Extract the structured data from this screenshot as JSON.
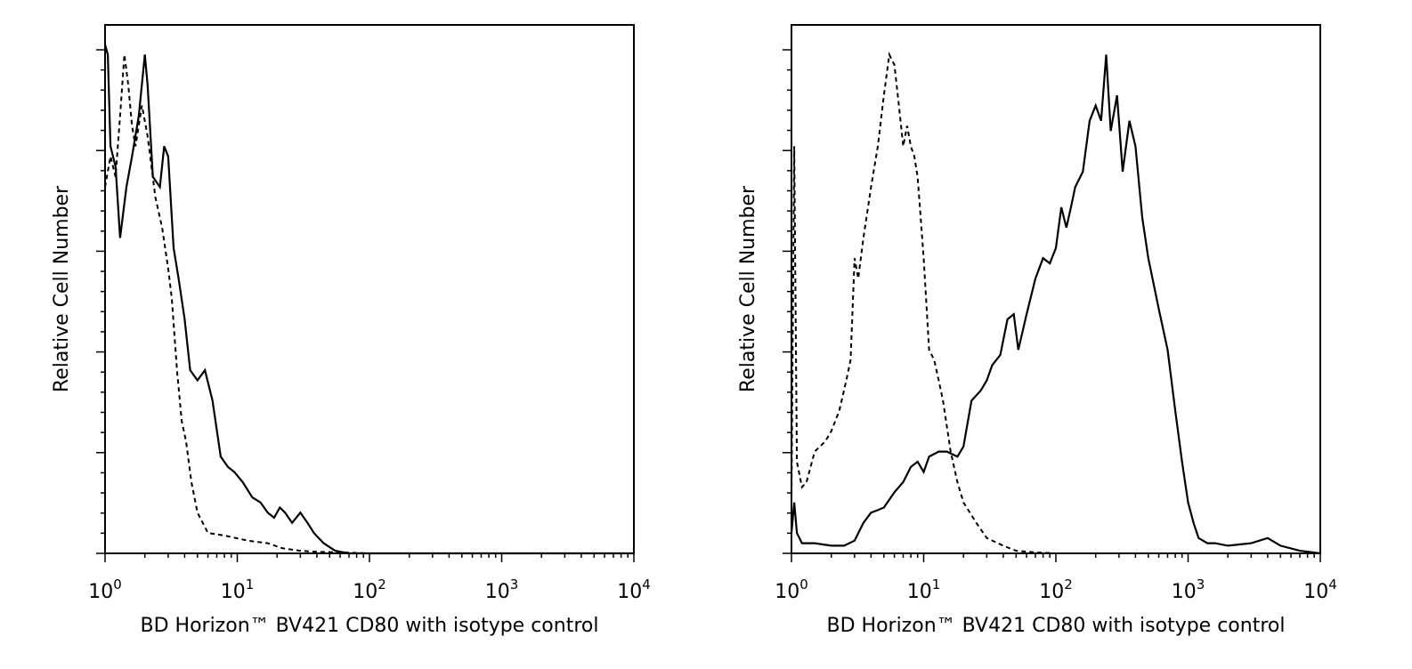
{
  "chart_data": [
    {
      "type": "line",
      "title": "",
      "xlabel": "BD Horizon™ BV421 CD80 with isotype control",
      "ylabel": "Relative Cell Number",
      "xscale": "log",
      "xlim": [
        1,
        10000
      ],
      "ylim": [
        0,
        100
      ],
      "x_ticks": [
        {
          "base": "10",
          "exp": "0"
        },
        {
          "base": "10",
          "exp": "1"
        },
        {
          "base": "10",
          "exp": "2"
        },
        {
          "base": "10",
          "exp": "3"
        },
        {
          "base": "10",
          "exp": "4"
        }
      ],
      "y_tick_count": 6,
      "grid": false,
      "series": [
        {
          "style": "solid",
          "color": "#000000",
          "x": [
            1.0,
            1.05,
            1.1,
            1.2,
            1.3,
            1.45,
            1.6,
            1.8,
            2.0,
            2.1,
            2.3,
            2.6,
            2.8,
            3.0,
            3.3,
            3.6,
            4.0,
            4.4,
            5.0,
            5.7,
            6.5,
            7.5,
            8.5,
            9.5,
            11,
            13,
            15,
            17,
            19,
            21,
            23,
            26,
            30,
            34,
            38,
            45,
            55,
            70,
            100,
            1000,
            10000
          ],
          "y": [
            100,
            98,
            80,
            76,
            62,
            72,
            78,
            86,
            98,
            92,
            74,
            72,
            80,
            78,
            60,
            54,
            46,
            36,
            34,
            36,
            30,
            19,
            17,
            16,
            14,
            11,
            10,
            8,
            7,
            9,
            8,
            6,
            8,
            6,
            4,
            2,
            0.5,
            0,
            0,
            0,
            0
          ]
        },
        {
          "style": "dashed",
          "color": "#000000",
          "x": [
            1.0,
            1.1,
            1.2,
            1.3,
            1.4,
            1.5,
            1.6,
            1.7,
            1.9,
            2.1,
            2.4,
            2.7,
            3.0,
            3.2,
            3.5,
            3.8,
            4.1,
            4.5,
            5.0,
            6.0,
            8.0,
            12,
            17,
            22,
            30,
            40,
            60,
            100,
            1000,
            10000
          ],
          "y": [
            72,
            78,
            74,
            86,
            98,
            92,
            84,
            80,
            88,
            82,
            70,
            64,
            56,
            50,
            36,
            26,
            22,
            14,
            8,
            4,
            3.5,
            2.5,
            2,
            1,
            0.5,
            0.3,
            0.2,
            0,
            0,
            0
          ]
        }
      ]
    },
    {
      "type": "line",
      "title": "",
      "xlabel": "BD Horizon™ BV421 CD80 with isotype control",
      "ylabel": "Relative Cell Number",
      "xscale": "log",
      "xlim": [
        1,
        10000
      ],
      "ylim": [
        0,
        100
      ],
      "x_ticks": [
        {
          "base": "10",
          "exp": "0"
        },
        {
          "base": "10",
          "exp": "1"
        },
        {
          "base": "10",
          "exp": "2"
        },
        {
          "base": "10",
          "exp": "3"
        },
        {
          "base": "10",
          "exp": "4"
        }
      ],
      "y_tick_count": 6,
      "grid": false,
      "series": [
        {
          "style": "solid",
          "color": "#000000",
          "x": [
            1.0,
            1.05,
            1.1,
            1.2,
            1.5,
            2.0,
            2.5,
            3.0,
            3.5,
            4.0,
            4.5,
            5.0,
            6.0,
            7.0,
            8.0,
            9.0,
            10,
            11,
            13,
            15,
            18,
            20,
            23,
            27,
            30,
            33,
            38,
            43,
            48,
            52,
            60,
            70,
            80,
            90,
            100,
            110,
            120,
            130,
            140,
            160,
            180,
            200,
            220,
            240,
            260,
            290,
            320,
            360,
            400,
            450,
            500,
            600,
            700,
            800,
            900,
            1000,
            1100,
            1200,
            1400,
            1600,
            2000,
            3000,
            4000,
            5000,
            7000,
            10000
          ],
          "y": [
            4,
            10,
            4,
            2,
            2,
            1.5,
            1.5,
            2.5,
            6,
            8,
            8.5,
            9,
            12,
            14,
            17,
            18,
            16,
            19,
            20,
            20,
            19,
            21,
            30,
            32,
            34,
            37,
            39,
            46,
            47,
            40,
            47,
            54,
            58,
            57,
            60,
            68,
            64,
            68,
            72,
            75,
            85,
            88,
            85,
            98,
            83,
            90,
            75,
            85,
            80,
            66,
            58,
            48,
            40,
            28,
            18,
            10,
            6,
            3,
            2,
            2,
            1.5,
            2,
            3,
            1.5,
            0.5,
            0
          ]
        },
        {
          "style": "dashed",
          "color": "#000000",
          "x": [
            1.0,
            1.05,
            1.1,
            1.2,
            1.3,
            1.5,
            1.8,
            2.0,
            2.3,
            2.6,
            2.8,
            3.0,
            3.2,
            3.5,
            4.0,
            4.5,
            5.0,
            5.5,
            6.0,
            6.5,
            7.0,
            7.5,
            8.0,
            8.5,
            9.0,
            10,
            11,
            12,
            13,
            14,
            16,
            18,
            20,
            25,
            30,
            40,
            50,
            70,
            100,
            1000,
            10000
          ],
          "y": [
            10,
            80,
            18,
            13,
            14,
            20,
            22,
            24,
            28,
            34,
            38,
            58,
            54,
            62,
            72,
            80,
            90,
            98,
            96,
            88,
            80,
            84,
            80,
            78,
            74,
            58,
            40,
            38,
            34,
            30,
            20,
            14,
            10,
            6,
            3,
            1.5,
            0.5,
            0.2,
            0,
            0,
            0
          ]
        }
      ]
    }
  ]
}
